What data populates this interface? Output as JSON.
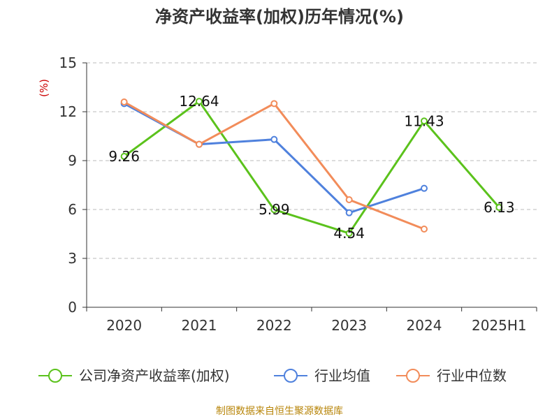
{
  "chart_data": {
    "type": "line",
    "title": "净资产收益率(加权)历年情况(%)",
    "ylabel": "(%)",
    "xlabel": "",
    "categories": [
      "2020",
      "2021",
      "2022",
      "2023",
      "2024",
      "2025H1"
    ],
    "ylim": [
      0,
      15
    ],
    "yticks": [
      0,
      3,
      6,
      9,
      12,
      15
    ],
    "grid": true,
    "legend_position": "bottom",
    "series": [
      {
        "name": "公司净资产收益率(加权)",
        "color": "#5bc21c",
        "values": [
          9.26,
          12.64,
          5.99,
          4.54,
          11.43,
          6.13
        ],
        "labels": [
          "9.26",
          "12.64",
          "5.99",
          "4.54",
          "11.43",
          "6.13"
        ]
      },
      {
        "name": "行业均值",
        "color": "#4f81dd",
        "values": [
          12.5,
          10.0,
          10.3,
          5.8,
          7.3,
          null
        ],
        "labels": []
      },
      {
        "name": "行业中位数",
        "color": "#f28c5a",
        "values": [
          12.6,
          10.0,
          12.5,
          6.6,
          4.8,
          null
        ],
        "labels": []
      }
    ]
  },
  "footer": {
    "source": "制图数据来自恒生聚源数据库"
  }
}
